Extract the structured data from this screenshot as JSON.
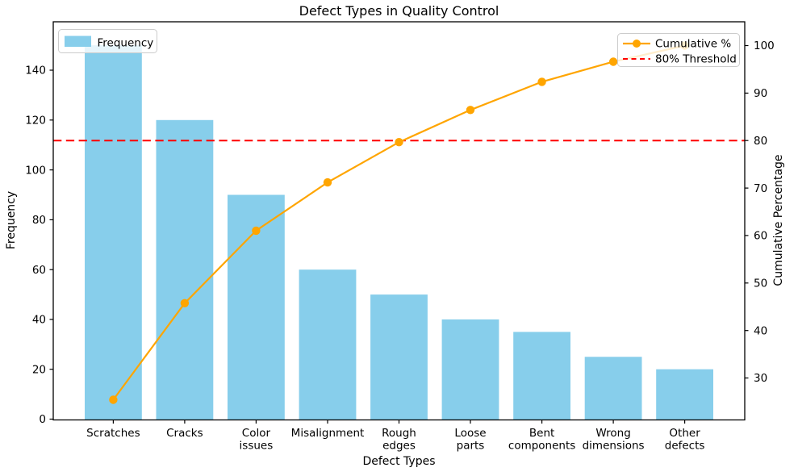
{
  "title": "Defect Types in Quality Control",
  "axes": {
    "x_label": "Defect Types",
    "y_left_label": "Frequency",
    "y_right_label": "Cumulative Percentage"
  },
  "legends": {
    "frequency": {
      "label": "Frequency",
      "swatch_color": "#87CEEB"
    },
    "cumulative": {
      "label": "Cumulative %",
      "line_color": "#FFA500"
    },
    "threshold": {
      "label": "80% Threshold",
      "line_color": "#FF0000"
    }
  },
  "chart_data": {
    "type": "bar",
    "subtype": "pareto (bar + cumulative line)",
    "title": "Defect Types in Quality Control",
    "xlabel": "Defect Types",
    "ylabel_left": "Frequency",
    "ylabel_right": "Cumulative Percentage",
    "categories": [
      "Scratches",
      "Cracks",
      "Color\nissues",
      "Misalignment",
      "Rough\nedges",
      "Loose\nparts",
      "Bent\ncomponents",
      "Wrong\ndimensions",
      "Other\ndefects"
    ],
    "series": [
      {
        "name": "Frequency",
        "type": "bar",
        "axis": "left",
        "color": "#87CEEB",
        "values": [
          150,
          120,
          90,
          60,
          50,
          40,
          35,
          25,
          20
        ]
      },
      {
        "name": "Cumulative %",
        "type": "line",
        "axis": "right",
        "color": "#FFA500",
        "marker": "circle",
        "values": [
          25.42,
          45.76,
          61.02,
          71.19,
          79.66,
          86.44,
          92.37,
          96.61,
          100.0
        ]
      }
    ],
    "threshold": {
      "label": "80% Threshold",
      "value": 80,
      "axis": "right",
      "color": "#FF0000",
      "style": "dashed"
    },
    "y_left": {
      "ticks": [
        0,
        20,
        40,
        60,
        80,
        100,
        120,
        140
      ]
    },
    "y_right": {
      "ticks": [
        30,
        40,
        50,
        60,
        70,
        80,
        90,
        100
      ]
    },
    "grid": false,
    "legend_positions": [
      "upper left",
      "upper right"
    ]
  }
}
